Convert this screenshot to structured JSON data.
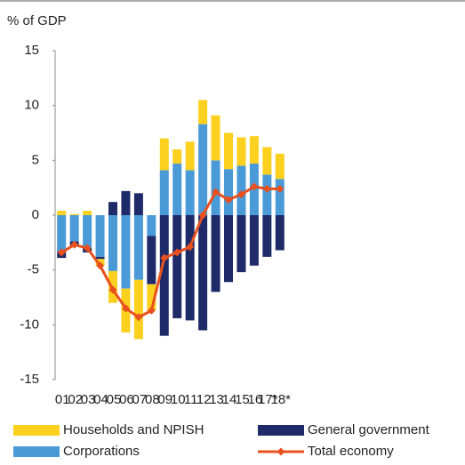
{
  "chart_data": {
    "type": "bar",
    "ylabel": "% of GDP",
    "categories": [
      "01",
      "02",
      "03",
      "04",
      "05",
      "06",
      "07",
      "08",
      "09",
      "10",
      "11",
      "12",
      "13",
      "14",
      "15",
      "16",
      "17*",
      "18*"
    ],
    "ylim": [
      -15,
      15
    ],
    "yticks": [
      15,
      10,
      5,
      0,
      -5,
      -10,
      -15
    ],
    "grid": false,
    "series": [
      {
        "name": "Households and NPISH",
        "color": "#fcd01f",
        "values": [
          0.4,
          0.1,
          0.4,
          -0.6,
          -2.9,
          -4.0,
          -5.4,
          -2.4,
          2.9,
          1.3,
          2.6,
          2.2,
          4.1,
          3.3,
          2.6,
          2.5,
          2.5,
          2.3
        ]
      },
      {
        "name": "General government",
        "color": "#1f2a68",
        "values": [
          -0.6,
          -0.4,
          -0.4,
          -0.2,
          1.2,
          2.2,
          2.0,
          -4.4,
          -11.0,
          -9.4,
          -9.6,
          -10.5,
          -7.0,
          -6.1,
          -5.2,
          -4.6,
          -3.8,
          -3.2
        ]
      },
      {
        "name": "Corporations",
        "color": "#4a9ad8",
        "values": [
          -3.3,
          -2.4,
          -3.0,
          -3.8,
          -5.1,
          -6.7,
          -5.9,
          -1.9,
          4.1,
          4.7,
          4.1,
          8.3,
          5.0,
          4.2,
          4.5,
          4.7,
          3.7,
          3.3
        ]
      },
      {
        "name": "Total economy",
        "color": "#e8501e",
        "type": "line",
        "values": [
          -3.4,
          -2.7,
          -3.0,
          -4.6,
          -6.8,
          -8.5,
          -9.3,
          -8.7,
          -3.9,
          -3.4,
          -2.9,
          0.0,
          2.1,
          1.4,
          1.9,
          2.6,
          2.4,
          2.4
        ]
      }
    ]
  }
}
